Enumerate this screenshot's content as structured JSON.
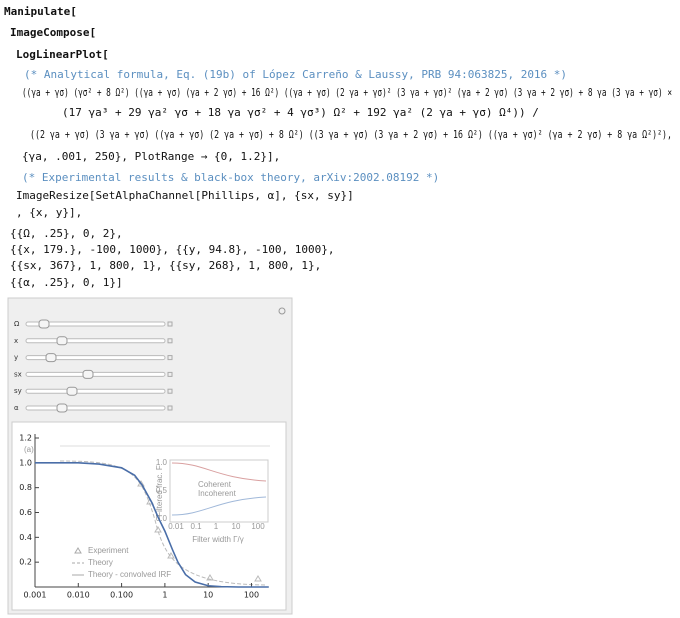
{
  "notebook": {
    "lines": [
      "Manipulate[",
      "ImageCompose[",
      "LogLinearPlot[",
      "(* Analytical formula, Eq. (19b) of López Carreño & Laussy, PRB 94:063825, 2016 *)",
      "((γa + γσ) (γσ² + 8 Ω²) ((γa + γσ) (γa + 2 γσ) + 16 Ω²) ((γa + γσ) (2 γa + γσ)² (3 γa + γσ)² (γa + 2 γσ) (3 γa + 2 γσ) + 8 γa (3 γa + γσ) ×",
      "(17 γa³ + 29 γa² γσ + 18 γa γσ² + 4 γσ³) Ω² + 192 γa² (2 γa + γσ) Ω⁴)) /",
      "((2 γa + γσ) (3 γa + γσ) ((γa + γσ) (2 γa + γσ) + 8 Ω²) ((3 γa + γσ) (3 γa + 2 γσ) + 16 Ω²) ((γa + γσ)² (γa + 2 γσ) + 8 γa Ω²)²),",
      "{γa, .001, 250}, PlotRange → {0, 1.2}],",
      "(* Experimental results & black-box theory, arXiv:2002.08192 *)",
      "ImageResize[SetAlphaChannel[Phillips, α], {sx, sy}]",
      ", {x, y}],",
      "{{Ω, .25}, 0, 2},",
      "{{x, 179.}, -100, 1000}, {{y, 94.8}, -100, 1000},",
      "{{sx, 367}, 1, 800, 1}, {{sy, 268}, 1, 800, 1},",
      "{{α, .25}, 0, 1}]"
    ]
  },
  "controls": [
    "Ω",
    "x",
    "y",
    "sx",
    "sy",
    "α"
  ],
  "chart_data": {
    "type": "line",
    "log_x": true,
    "color": "#4a6ea8",
    "x": [
      0.001,
      0.003,
      0.01,
      0.03,
      0.1,
      0.2,
      0.3,
      0.5,
      0.7,
      1,
      1.5,
      2,
      3,
      5,
      10,
      20,
      50,
      100,
      250
    ],
    "values": [
      1.0,
      1.0,
      1.0,
      0.99,
      0.96,
      0.9,
      0.82,
      0.68,
      0.56,
      0.45,
      0.3,
      0.2,
      0.1,
      0.04,
      0.01,
      0.003,
      0,
      0,
      0
    ],
    "xlim": [
      0.001,
      250
    ],
    "ylim": [
      0,
      1.2
    ],
    "xticks": [
      0.001,
      {
        "value": 0.01,
        "label": "0.010"
      },
      {
        "value": 0.1,
        "label": "0.100"
      },
      1,
      10,
      100
    ],
    "yticks": [
      {
        "value": 0.2,
        "label": "0.2"
      },
      {
        "value": 0.4,
        "label": "0.4"
      },
      {
        "value": 0.6,
        "label": "0.6"
      },
      {
        "value": 0.8,
        "label": "0.8"
      },
      {
        "value": 1.0,
        "label": "1.0"
      },
      {
        "value": 1.2,
        "label": "1.2"
      }
    ]
  },
  "overlay": {
    "panel_label": "(a)",
    "legend": [
      "Experiment",
      "Theory",
      "Theory - convolved IRF"
    ],
    "inset": {
      "y_label": "Filtered frac. F",
      "x_label": "Filter width Γ/γ",
      "series_labels": [
        "Coherent",
        "Incoherent"
      ],
      "yticks": [
        "1.0",
        "0.5",
        "0.0"
      ],
      "xticks": [
        "0.01",
        "0.1",
        "1",
        "10",
        "100"
      ]
    }
  }
}
